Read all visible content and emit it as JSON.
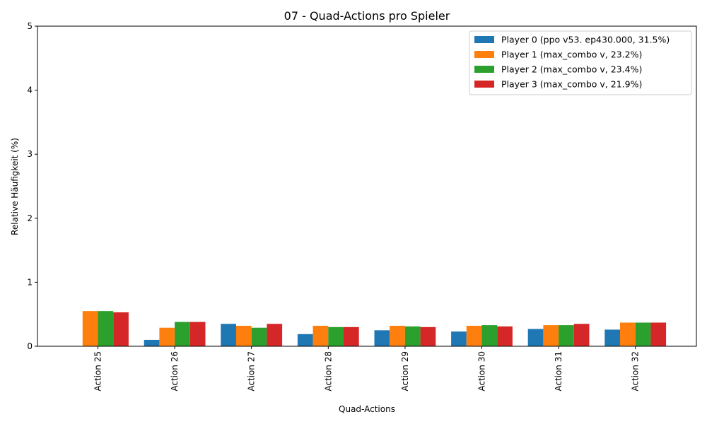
{
  "chart_data": {
    "type": "bar",
    "title": "07 - Quad-Actions pro Spieler",
    "xlabel": "Quad-Actions",
    "ylabel": "Relative Häufigkeit (%)",
    "ylim": [
      0,
      5
    ],
    "yticks": [
      "0",
      "1",
      "2",
      "3",
      "4",
      "5"
    ],
    "grid": false,
    "legend_position": "top-right",
    "categories": [
      "Action 25",
      "Action 26",
      "Action 27",
      "Action 28",
      "Action 29",
      "Action 30",
      "Action 31",
      "Action 32"
    ],
    "series": [
      {
        "name": "Player 0 (ppo v53. ep430.000, 31.5%)",
        "color": "#1f77b4",
        "values": [
          0.0,
          0.1,
          0.35,
          0.19,
          0.25,
          0.23,
          0.27,
          0.26
        ]
      },
      {
        "name": "Player 1 (max_combo v, 23.2%)",
        "color": "#ff7f0e",
        "values": [
          0.55,
          0.29,
          0.32,
          0.32,
          0.32,
          0.32,
          0.33,
          0.37
        ]
      },
      {
        "name": "Player 2 (max_combo v, 23.4%)",
        "color": "#2ca02c",
        "values": [
          0.55,
          0.38,
          0.29,
          0.3,
          0.31,
          0.33,
          0.33,
          0.37
        ]
      },
      {
        "name": "Player 3 (max_combo v, 21.9%)",
        "color": "#d62728",
        "values": [
          0.53,
          0.38,
          0.35,
          0.3,
          0.3,
          0.31,
          0.35,
          0.37
        ]
      }
    ]
  }
}
